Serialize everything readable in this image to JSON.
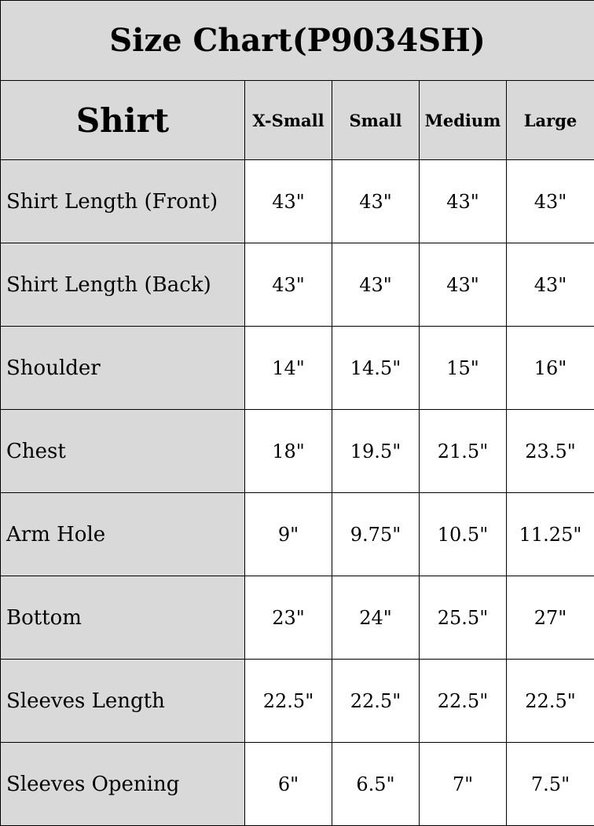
{
  "title": "Size Chart(P9034SH)",
  "header": {
    "section": "Shirt",
    "sizes": [
      "X-Small",
      "Small",
      "Medium",
      "Large"
    ]
  },
  "rows": [
    {
      "label": "Shirt Length (Front)",
      "values": [
        "43\"",
        "43\"",
        "43\"",
        "43\""
      ]
    },
    {
      "label": "Shirt Length (Back)",
      "values": [
        "43\"",
        "43\"",
        "43\"",
        "43\""
      ]
    },
    {
      "label": "Shoulder",
      "values": [
        "14\"",
        "14.5\"",
        "15\"",
        "16\""
      ]
    },
    {
      "label": "Chest",
      "values": [
        "18\"",
        "19.5\"",
        "21.5\"",
        "23.5\""
      ]
    },
    {
      "label": "Arm Hole",
      "values": [
        "9\"",
        "9.75\"",
        "10.5\"",
        "11.25\""
      ]
    },
    {
      "label": "Bottom",
      "values": [
        "23\"",
        "24\"",
        "25.5\"",
        "27\""
      ]
    },
    {
      "label": "Sleeves Length",
      "values": [
        "22.5\"",
        "22.5\"",
        "22.5\"",
        "22.5\""
      ]
    },
    {
      "label": "Sleeves Opening",
      "values": [
        "6\"",
        "6.5\"",
        "7\"",
        "7.5\""
      ]
    }
  ],
  "colors": {
    "header_bg": "#d9d9d9",
    "cell_bg": "#ffffff",
    "border": "#000000"
  }
}
